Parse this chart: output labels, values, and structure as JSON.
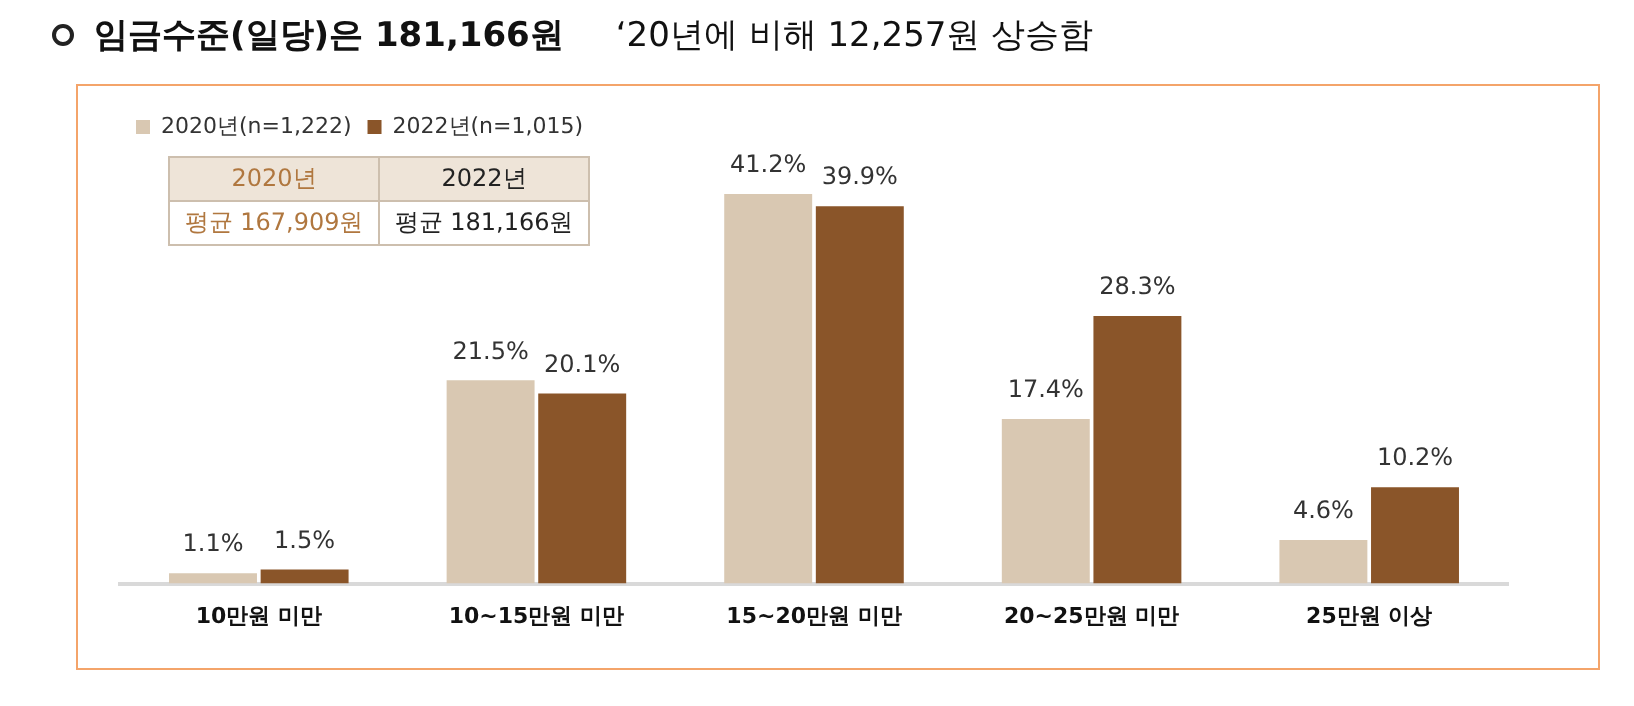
{
  "chart_data": {
    "type": "bar",
    "title": "임금수준(일당)은 181,166원",
    "subtitle": "‘20년에 비해 12,257원 상승함",
    "categories": [
      "10만원 미만",
      "10~15만원 미만",
      "15~20만원 미만",
      "20~25만원 미만",
      "25만원 이상"
    ],
    "series": [
      {
        "name": "2020년(n=1,222)",
        "color": "#d9c8b2",
        "values": [
          1.1,
          21.5,
          41.2,
          17.4,
          4.6
        ],
        "value_labels": [
          "1.1%",
          "21.5%",
          "41.2%",
          "17.4%",
          "4.6%"
        ]
      },
      {
        "name": "2022년(n=1,015)",
        "color": "#8a5529",
        "values": [
          1.5,
          20.1,
          39.9,
          28.3,
          10.2
        ],
        "value_labels": [
          "1.5%",
          "20.1%",
          "39.9%",
          "28.3%",
          "10.2%"
        ]
      }
    ],
    "annotations": [
      "2020년",
      "2022년",
      "평균 167,909원",
      "평균 181,166원"
    ],
    "legend": "top left",
    "grid": false,
    "tick_labels": "x"
  }
}
